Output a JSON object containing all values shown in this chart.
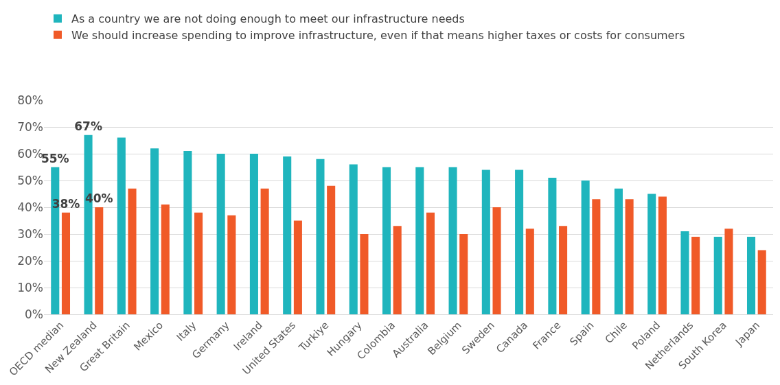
{
  "chart_data": {
    "type": "bar",
    "categories": [
      "OECD median",
      "New Zealand",
      "Great Britain",
      "Mexico",
      "Italy",
      "Germany",
      "Ireland",
      "United States",
      "Turkiye",
      "Hungary",
      "Colombia",
      "Australia",
      "Belgium",
      "Sweden",
      "Canada",
      "France",
      "Spain",
      "Chile",
      "Poland",
      "Netherlands",
      "South Korea",
      "Japan"
    ],
    "series": [
      {
        "name": "As a country we are not doing enough to meet our infrastructure needs",
        "color": "#1fb5bd",
        "values": [
          0.55,
          0.67,
          0.66,
          0.62,
          0.61,
          0.6,
          0.6,
          0.59,
          0.58,
          0.56,
          0.55,
          0.55,
          0.55,
          0.54,
          0.54,
          0.51,
          0.5,
          0.47,
          0.45,
          0.31,
          0.29,
          0.29
        ],
        "value_labels": [
          "55%",
          "67%",
          null,
          null,
          null,
          null,
          null,
          null,
          null,
          null,
          null,
          null,
          null,
          null,
          null,
          null,
          null,
          null,
          null,
          null,
          null,
          null
        ]
      },
      {
        "name": "We should increase spending to improve infrastructure, even if that means higher taxes or costs for consumers",
        "color": "#f05a28",
        "values": [
          0.38,
          0.4,
          0.47,
          0.41,
          0.38,
          0.37,
          0.47,
          0.35,
          0.48,
          0.3,
          0.33,
          0.38,
          0.3,
          0.4,
          0.32,
          0.33,
          0.43,
          0.43,
          0.44,
          0.29,
          0.32,
          0.24
        ],
        "value_labels": [
          "38%",
          "40%",
          null,
          null,
          null,
          null,
          null,
          null,
          null,
          null,
          null,
          null,
          null,
          null,
          null,
          null,
          null,
          null,
          null,
          null,
          null,
          null
        ]
      }
    ],
    "ylim": [
      0,
      0.8
    ],
    "yticks": [
      {
        "value": 0,
        "label": "0%"
      },
      {
        "value": 0.1,
        "label": "10%"
      },
      {
        "value": 0.2,
        "label": "20%"
      },
      {
        "value": 0.3,
        "label": "30%"
      },
      {
        "value": 0.4,
        "label": "40%"
      },
      {
        "value": 0.5,
        "label": "50%"
      },
      {
        "value": 0.6,
        "label": "60%"
      },
      {
        "value": 0.7,
        "label": "70%"
      },
      {
        "value": 0.8,
        "label": "80%"
      }
    ],
    "grid": "y",
    "legend": "top left"
  }
}
